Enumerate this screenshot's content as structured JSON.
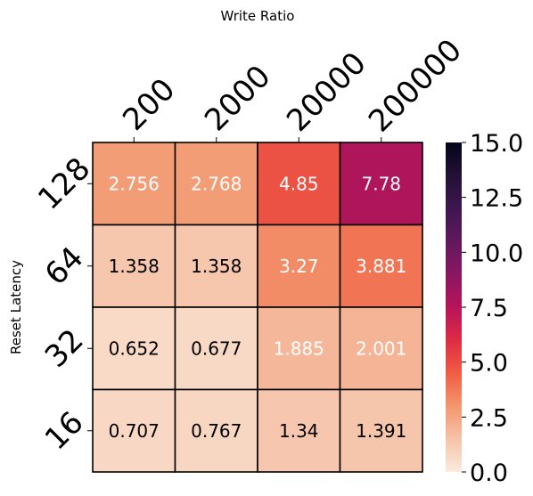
{
  "chart_data": {
    "type": "heatmap",
    "xlabel": "Write Ratio",
    "ylabel": "Reset Latency",
    "x_categories": [
      "200",
      "2000",
      "20000",
      "200000"
    ],
    "y_categories": [
      "128",
      "64",
      "32",
      "16"
    ],
    "values": [
      [
        2.756,
        2.768,
        4.85,
        7.78
      ],
      [
        1.358,
        1.358,
        3.27,
        3.881
      ],
      [
        0.652,
        0.677,
        1.885,
        2.001
      ],
      [
        0.707,
        0.767,
        1.34,
        1.391
      ]
    ],
    "value_labels": [
      [
        "2.756",
        "2.768",
        "4.85",
        "7.78"
      ],
      [
        "1.358",
        "1.358",
        "3.27",
        "3.881"
      ],
      [
        "0.652",
        "0.677",
        "1.885",
        "2.001"
      ],
      [
        "0.707",
        "0.767",
        "1.34",
        "1.391"
      ]
    ],
    "colorbar": {
      "vmin": 0.0,
      "vmax": 15.0,
      "ticks": [
        "0.0",
        "2.5",
        "5.0",
        "7.5",
        "10.0",
        "12.5",
        "15.0"
      ],
      "colormap": "rocket_r"
    },
    "x_axis_position": "top",
    "grid": false
  }
}
